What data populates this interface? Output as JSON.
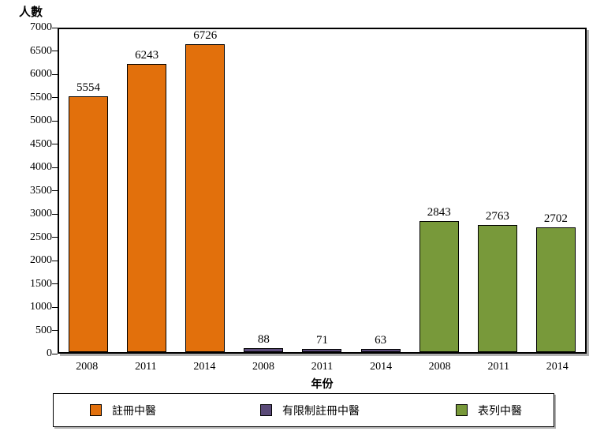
{
  "chart_data": {
    "type": "bar",
    "title": "",
    "ylabel": "人數",
    "xlabel": "年份",
    "ylim": [
      0,
      7000
    ],
    "ytick_step": 500,
    "grid": false,
    "legend_position": "bottom",
    "categories": [
      "2008",
      "2011",
      "2014"
    ],
    "series": [
      {
        "name": "註冊中醫",
        "color": "#E2700C",
        "values": [
          5554,
          6243,
          6726
        ]
      },
      {
        "name": "有限制註冊中醫",
        "color": "#5A4A78",
        "values": [
          88,
          71,
          63
        ]
      },
      {
        "name": "表列中醫",
        "color": "#78993A",
        "values": [
          2843,
          2763,
          2702
        ]
      }
    ]
  }
}
